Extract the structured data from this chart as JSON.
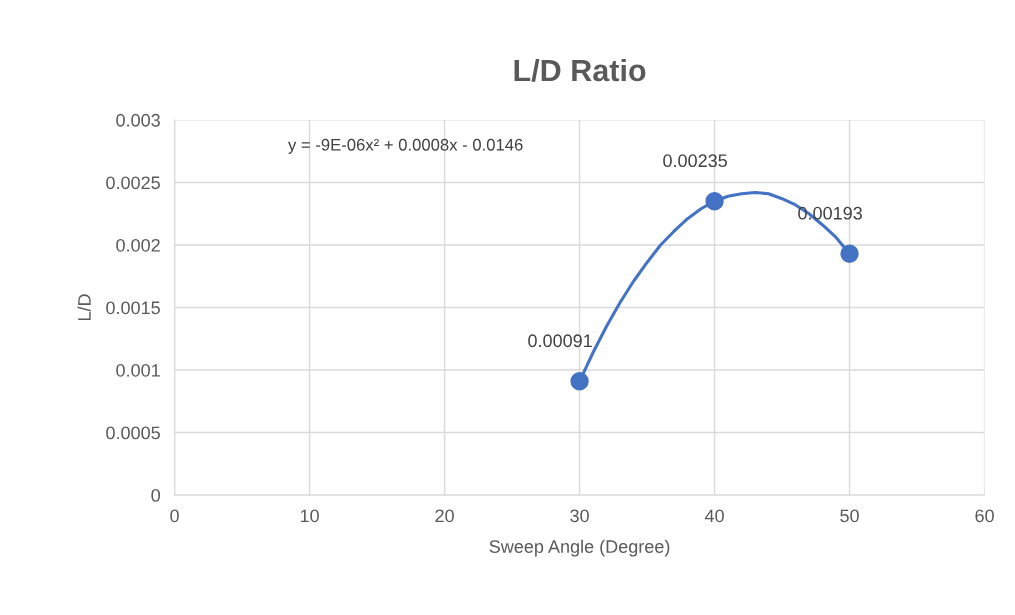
{
  "chart_data": {
    "type": "scatter",
    "title": "L/D Ratio",
    "xlabel": "Sweep Angle (Degree)",
    "ylabel": "L/D",
    "x": [
      30,
      40,
      50
    ],
    "series": [
      {
        "type": "line",
        "color": "#4472c4",
        "marker": "none",
        "line_style": "solid",
        "x": [
          30,
          31,
          32,
          33,
          34,
          35,
          36,
          37,
          38,
          39,
          40,
          41,
          42,
          43,
          44,
          45,
          46,
          47,
          48,
          49,
          50
        ],
        "values": [
          0.00091,
          0.00114,
          0.00135,
          0.00154,
          0.00171,
          0.00186,
          0.002,
          0.00211,
          0.00221,
          0.00229,
          0.00235,
          0.00239,
          0.00241,
          0.00242,
          0.00241,
          0.00237,
          0.00232,
          0.00225,
          0.00216,
          0.00206,
          0.00193
        ]
      },
      {
        "color": "#4472c4",
        "marker": "circle",
        "values": [
          0.00091,
          0.00235,
          0.00193
        ],
        "value_labels": [
          "0.00091",
          "0.00235",
          "0.00193"
        ]
      }
    ],
    "xlim": [
      0,
      60
    ],
    "xticks": [
      0,
      10,
      20,
      30,
      40,
      50,
      60
    ],
    "ylim": [
      0,
      0.003
    ],
    "yticks": [
      0,
      0.0005,
      0.001,
      0.0015,
      0.002,
      0.0025,
      0.003
    ],
    "annotations": [
      "y = -9E-06x² + 0.0008x - 0.0146"
    ],
    "grid": true
  }
}
